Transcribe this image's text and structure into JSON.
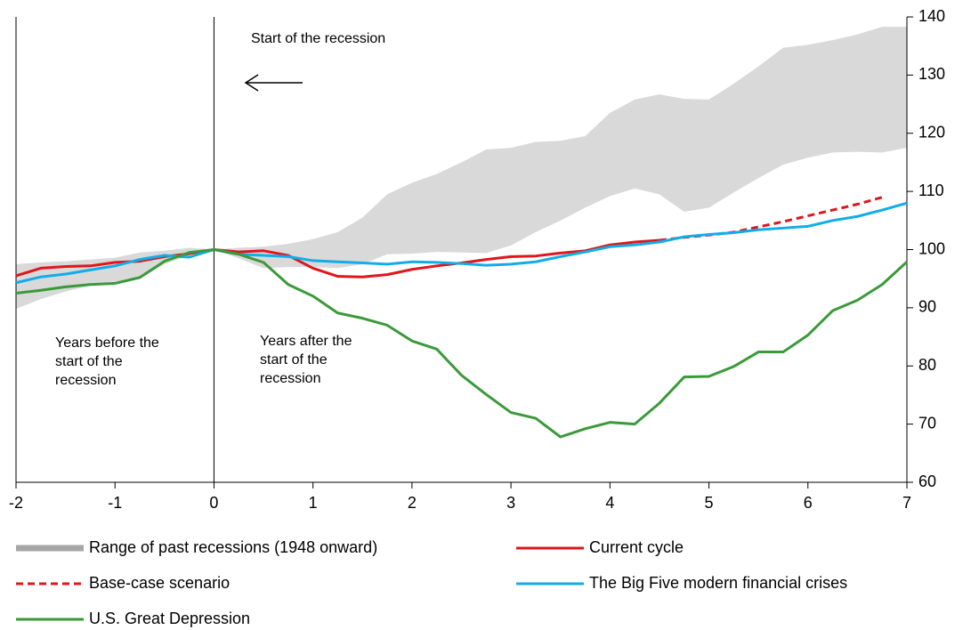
{
  "chart_data": {
    "type": "line",
    "x": [
      -2,
      -1.75,
      -1.5,
      -1.25,
      -1,
      -0.75,
      -0.5,
      -0.25,
      0,
      0.25,
      0.5,
      0.75,
      1,
      1.25,
      1.5,
      1.75,
      2,
      2.25,
      2.5,
      2.75,
      3,
      3.25,
      3.5,
      3.75,
      4,
      4.25,
      4.5,
      4.75,
      5,
      5.25,
      5.5,
      5.75,
      6,
      6.25,
      6.5,
      6.75,
      7
    ],
    "xlim": [
      -2,
      7
    ],
    "xticks": [
      -2,
      -1,
      0,
      1,
      2,
      3,
      4,
      5,
      6,
      7
    ],
    "ylim": [
      60,
      140
    ],
    "yticks": [
      60,
      70,
      80,
      90,
      100,
      110,
      120,
      130,
      140
    ],
    "y_axis_side": "right",
    "vline": 0,
    "annotations": [
      {
        "lines": [
          "Start of the recession"
        ]
      },
      {
        "lines": [
          "Years before the",
          "start of the",
          "recession"
        ]
      },
      {
        "lines": [
          "Years after the",
          "start of the",
          "recession"
        ]
      }
    ],
    "band": {
      "name": "Range of past recessions (1948 onward)",
      "color": "#d9d9d9",
      "legend_color": "#a6a6a6",
      "lower": [
        89.8,
        91.5,
        92.8,
        93.8,
        94.5,
        95,
        97.5,
        99,
        100,
        98.5,
        96.8,
        97,
        97,
        96.8,
        97.5,
        99.2,
        99.3,
        99.6,
        99.5,
        99.4,
        100.7,
        103,
        105,
        107.2,
        109.2,
        110.5,
        109.5,
        106.5,
        107.2,
        109.8,
        112.3,
        114.6,
        115.8,
        116.7,
        116.8,
        116.7,
        117.5
      ],
      "upper": [
        97.5,
        97.8,
        98,
        98.3,
        98.6,
        99.5,
        99.8,
        100.3,
        100,
        100.3,
        100.5,
        101,
        101.8,
        103,
        105.5,
        109.5,
        111.5,
        113,
        115,
        117.2,
        117.5,
        118.5,
        118.7,
        119.5,
        123.5,
        125.8,
        126.7,
        125.9,
        125.8,
        128.5,
        131.5,
        134.7,
        135.2,
        136,
        137,
        138.3,
        138.3
      ]
    },
    "series": [
      {
        "name": "Current cycle",
        "color": "#e0161c",
        "dash": false,
        "values": [
          95.5,
          96.8,
          97.1,
          97.2,
          97.8,
          98.0,
          98.8,
          99.3,
          100,
          99.6,
          99.8,
          99,
          96.8,
          95.4,
          95.3,
          95.7,
          96.6,
          97.2,
          97.7,
          98.3,
          98.8,
          98.9,
          99.4,
          99.8,
          100.8,
          101.3,
          101.6,
          null,
          null,
          null,
          null,
          null,
          null,
          null,
          null,
          null,
          null
        ]
      },
      {
        "name": "Base-case scenario",
        "color": "#e0161c",
        "dash": true,
        "values": [
          null,
          null,
          null,
          null,
          null,
          null,
          null,
          null,
          null,
          null,
          null,
          null,
          null,
          null,
          null,
          null,
          null,
          null,
          null,
          null,
          null,
          null,
          null,
          null,
          null,
          null,
          101.6,
          102.1,
          102.5,
          103.0,
          103.9,
          104.8,
          105.8,
          106.8,
          107.8,
          109.0,
          null
        ]
      },
      {
        "name": "The Big Five modern financial crises",
        "color": "#10aee8",
        "dash": false,
        "values": [
          94.3,
          95.3,
          95.8,
          96.5,
          97.2,
          98.3,
          99.0,
          98.7,
          100,
          99.2,
          99.0,
          98.8,
          98.1,
          97.9,
          97.7,
          97.5,
          97.9,
          97.8,
          97.6,
          97.3,
          97.5,
          97.9,
          98.8,
          99.6,
          100.5,
          100.8,
          101.3,
          102.2,
          102.6,
          102.9,
          103.4,
          103.7,
          104.0,
          105,
          105.7,
          106.8,
          108.0
        ]
      },
      {
        "name": "U.S. Great Depression",
        "color": "#3a9a3a",
        "dash": false,
        "values": [
          92.5,
          93,
          93.6,
          94,
          94.2,
          95.2,
          98,
          99.5,
          100,
          99.2,
          97.8,
          94,
          92,
          89.1,
          88.2,
          87,
          84.3,
          82.9,
          78.4,
          75.1,
          72,
          71,
          67.8,
          69.2,
          70.3,
          70,
          73.6,
          78.1,
          78.2,
          79.9,
          82.4,
          82.4,
          85.3,
          89.5,
          91.3,
          94,
          97.9
        ]
      }
    ]
  }
}
